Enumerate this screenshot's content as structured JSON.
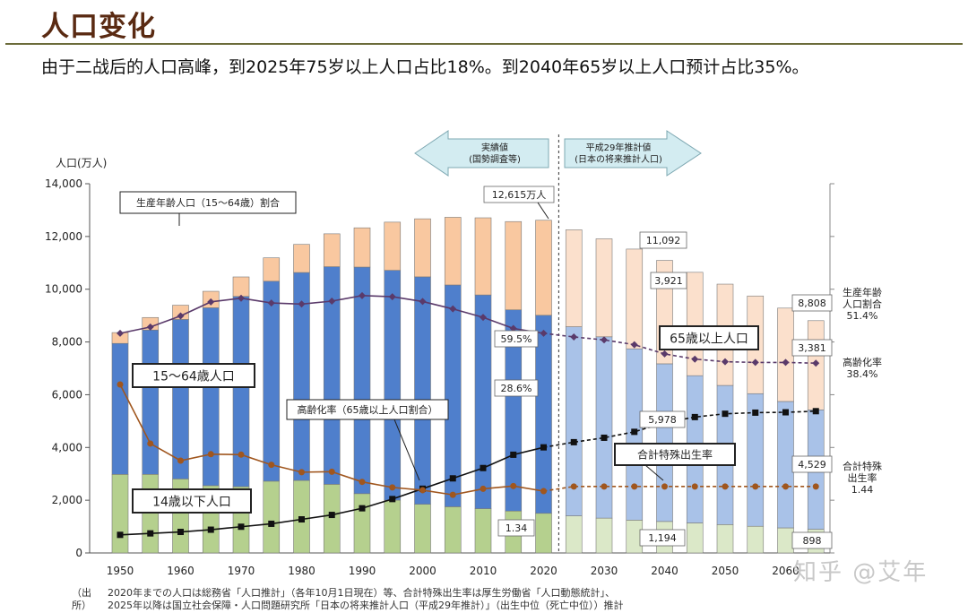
{
  "page": {
    "title": "人口变化",
    "subtitle": "由于二战后的人口高峰，到2025年75岁以上人口占比18%。到2040年65岁以上人口预计占比35%。",
    "watermark": "知乎 @艾年",
    "source_label": "（出所）",
    "source_line1": "2020年までの人口は総務省「人口推計」（各年10月1日現在）等、合計特殊出生率は厚生労働省「人口動態統計」、",
    "source_line2": "2025年以降は国立社会保障・人口問題研究所「日本の将来推計人口（平成29年推計）」（出生中位（死亡中位））推計"
  },
  "chart_data": {
    "type": "bar",
    "ylabel": "人口(万人)",
    "ylim": [
      0,
      14000
    ],
    "yticks": [
      "0",
      "2,000",
      "4,000",
      "6,000",
      "8,000",
      "10,000",
      "12,000",
      "14,000"
    ],
    "x_tick_labels": [
      "1950",
      "1960",
      "1970",
      "1980",
      "1990",
      "2000",
      "2010",
      "2020",
      "2030",
      "2040",
      "2050",
      "2060"
    ],
    "years": [
      1950,
      1955,
      1960,
      1965,
      1970,
      1975,
      1980,
      1985,
      1990,
      1995,
      2000,
      2005,
      2010,
      2015,
      2020,
      2025,
      2030,
      2035,
      2040,
      2045,
      2050,
      2055,
      2060,
      2065
    ],
    "stacks": {
      "under15": [
        2979,
        2980,
        2807,
        2553,
        2515,
        2722,
        2751,
        2603,
        2249,
        2001,
        1847,
        1752,
        1680,
        1589,
        1503,
        1407,
        1321,
        1246,
        1194,
        1138,
        1077,
        1012,
        951,
        898
      ],
      "age15_64": [
        4966,
        5473,
        6047,
        6744,
        7212,
        7581,
        7883,
        8251,
        8590,
        8716,
        8622,
        8409,
        8103,
        7629,
        7509,
        7170,
        6875,
        6494,
        5978,
        5584,
        5275,
        5028,
        4793,
        4529
      ],
      "age65plus": [
        411,
        475,
        540,
        624,
        739,
        887,
        1065,
        1247,
        1489,
        1826,
        2201,
        2567,
        2925,
        3347,
        3603,
        3677,
        3716,
        3782,
        3921,
        3919,
        3841,
        3704,
        3540,
        3381
      ]
    },
    "series": [
      {
        "name": "生産年齢人口（15～64歳）割合",
        "unit": "%",
        "values": [
          59.5,
          61.2,
          64.2,
          68.0,
          69.0,
          67.7,
          67.4,
          68.2,
          69.7,
          69.4,
          68.1,
          66.1,
          63.8,
          60.8,
          59.5,
          58.5,
          57.7,
          56.4,
          53.9,
          52.5,
          51.8,
          51.6,
          51.6,
          51.4
        ]
      },
      {
        "name": "高齢化率（65歳以上人口割合）",
        "unit": "%",
        "values": [
          4.9,
          5.3,
          5.7,
          6.3,
          7.1,
          7.9,
          9.1,
          10.3,
          12.1,
          14.6,
          17.4,
          20.2,
          23.0,
          26.6,
          28.6,
          30.0,
          31.2,
          32.8,
          35.3,
          36.8,
          37.7,
          38.0,
          38.1,
          38.4
        ]
      },
      {
        "name": "合計特殊出生率",
        "values": [
          3.65,
          2.37,
          2.0,
          2.14,
          2.13,
          1.91,
          1.75,
          1.76,
          1.54,
          1.42,
          1.36,
          1.26,
          1.39,
          1.45,
          1.34,
          1.44,
          1.44,
          1.44,
          1.44,
          1.44,
          1.44,
          1.44,
          1.44,
          1.44
        ]
      }
    ],
    "header": {
      "left": [
        "実績値",
        "(国勢調査等)"
      ],
      "right": [
        "平成29年推計値",
        "(日本の将来推計人口)"
      ]
    },
    "labels": {
      "ratio_box": "生産年齢人口（15～64歳）割合",
      "age15_64_box": "15～64歳人口",
      "aging_box": "高齢化率（65歳以上人口割合）",
      "age65_box": "65歳以上人口",
      "tfr_box": "合計特殊出生率",
      "child_box": "14歳以下人口",
      "total2020": "12,615万人",
      "pct_ratio2020": "59.5%",
      "pct_aging2020": "28.6%",
      "tfr2020": "1.34",
      "total2040": "11,092",
      "p65_2040": "3,921",
      "p15_2040": "5,978",
      "c_2040": "1,194",
      "total2065": "8,808",
      "p65_2065": "3,381",
      "p15_2065": "4,529",
      "c_2065": "898",
      "rt_ratio": [
        "生産年齢",
        "人口割合",
        "51.4%"
      ],
      "rt_aging": [
        "高齢化率",
        "38.4%"
      ],
      "rt_tfr": [
        "合計特殊",
        "出生率",
        "1.44"
      ]
    },
    "colors": {
      "under15": "#b5d08e",
      "age15_64": "#4f7fcc",
      "age65plus": "#f9c8a0",
      "under15_proj": "#dbe8c8",
      "age15_64_proj": "#a9c2e8",
      "age65plus_proj": "#fbe0cc",
      "ratio_line": "#5a3a6a",
      "aging_line": "#111111",
      "tfr_line": "#a0561e"
    }
  }
}
